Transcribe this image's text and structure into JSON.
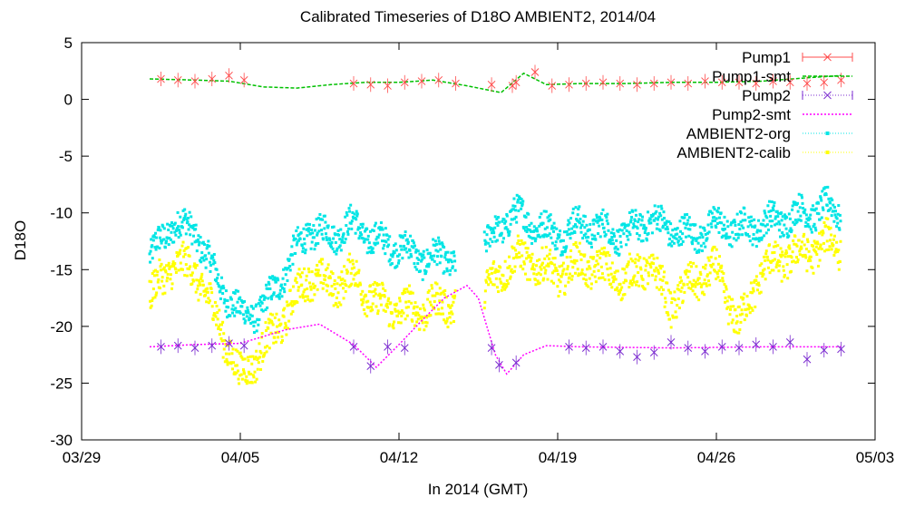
{
  "chart_data": {
    "type": "line",
    "title": "Calibrated Timeseries of D18O AMBIENT2, 2014/04",
    "xlabel": "In 2014 (GMT)",
    "ylabel": "D18O",
    "xlim": [
      "2014-03-29",
      "2014-05-03"
    ],
    "ylim": [
      -30,
      5
    ],
    "x_ticks": [
      "03/29",
      "04/05",
      "04/12",
      "04/19",
      "04/26",
      "05/03"
    ],
    "y_ticks": [
      "5",
      "0",
      "-5",
      "-10",
      "-15",
      "-20",
      "-25",
      "-30"
    ],
    "legend_position": "top-right",
    "series": [
      {
        "name": "Pump1",
        "color": "#ff4d4d",
        "marker": "cross-with-errorbars",
        "x": [
          "2014-04-01 12:00",
          "2014-04-02 06:00",
          "2014-04-03 00:00",
          "2014-04-03 18:00",
          "2014-04-04 12:00",
          "2014-04-05 04:00",
          "2014-04-10 00:00",
          "2014-04-10 18:00",
          "2014-04-11 12:00",
          "2014-04-12 06:00",
          "2014-04-13 00:00",
          "2014-04-13 18:00",
          "2014-04-14 12:00",
          "2014-04-16 02:00",
          "2014-04-17 00:00",
          "2014-04-17 04:00",
          "2014-04-18 00:00",
          "2014-04-18 18:00",
          "2014-04-19 12:00",
          "2014-04-20 06:00",
          "2014-04-21 00:00",
          "2014-04-21 18:00",
          "2014-04-22 12:00",
          "2014-04-23 06:00",
          "2014-04-24 00:00",
          "2014-04-24 18:00",
          "2014-04-25 12:00",
          "2014-04-26 06:00",
          "2014-04-27 00:00",
          "2014-04-27 18:00",
          "2014-04-28 12:00",
          "2014-04-29 06:00",
          "2014-04-30 00:00",
          "2014-04-30 18:00",
          "2014-05-01 12:00"
        ],
        "y": [
          1.8,
          1.7,
          1.6,
          1.8,
          2.1,
          1.7,
          1.4,
          1.3,
          1.2,
          1.5,
          1.6,
          1.7,
          1.4,
          1.3,
          1.2,
          1.5,
          2.4,
          1.2,
          1.3,
          1.4,
          1.5,
          1.4,
          1.3,
          1.4,
          1.5,
          1.4,
          1.6,
          1.5,
          1.5,
          1.4,
          1.6,
          1.5,
          1.4,
          1.5,
          1.7
        ]
      },
      {
        "name": "Pump1-smt",
        "color": "#00c000",
        "marker": "dashed-line",
        "x": [
          "2014-04-01 00:00",
          "2014-04-03 00:00",
          "2014-04-04 12:00",
          "2014-04-06 00:00",
          "2014-04-07 12:00",
          "2014-04-09 00:00",
          "2014-04-10 12:00",
          "2014-04-12 00:00",
          "2014-04-13 12:00",
          "2014-04-15 00:00",
          "2014-04-16 12:00",
          "2014-04-17 12:00",
          "2014-04-18 12:00",
          "2014-04-20 00:00",
          "2014-04-22 00:00",
          "2014-04-24 00:00",
          "2014-04-26 00:00",
          "2014-04-28 00:00",
          "2014-04-30 00:00",
          "2014-05-01 12:00"
        ],
        "y": [
          1.8,
          1.7,
          1.6,
          1.1,
          1.0,
          1.3,
          1.5,
          1.5,
          1.7,
          1.2,
          0.6,
          2.3,
          1.3,
          1.4,
          1.4,
          1.5,
          1.5,
          1.6,
          1.9,
          2.1
        ]
      },
      {
        "name": "Pump2",
        "color": "#7b2bd0",
        "marker": "cross-with-errorbars",
        "x": [
          "2014-04-01 12:00",
          "2014-04-02 06:00",
          "2014-04-03 00:00",
          "2014-04-03 18:00",
          "2014-04-04 12:00",
          "2014-04-05 04:00",
          "2014-04-10 00:00",
          "2014-04-10 18:00",
          "2014-04-11 12:00",
          "2014-04-12 06:00",
          "2014-04-16 02:00",
          "2014-04-16 10:00",
          "2014-04-17 04:00",
          "2014-04-19 12:00",
          "2014-04-20 06:00",
          "2014-04-21 00:00",
          "2014-04-21 18:00",
          "2014-04-22 12:00",
          "2014-04-23 06:00",
          "2014-04-24 00:00",
          "2014-04-24 18:00",
          "2014-04-25 12:00",
          "2014-04-26 06:00",
          "2014-04-27 00:00",
          "2014-04-27 18:00",
          "2014-04-28 12:00",
          "2014-04-29 06:00",
          "2014-04-30 00:00",
          "2014-04-30 18:00",
          "2014-05-01 12:00"
        ],
        "y": [
          -21.8,
          -21.7,
          -21.9,
          -21.7,
          -21.5,
          -21.7,
          -21.8,
          -23.5,
          -21.8,
          -21.9,
          -21.9,
          -23.4,
          -23.2,
          -21.8,
          -21.9,
          -21.8,
          -22.2,
          -22.7,
          -22.3,
          -21.4,
          -21.9,
          -22.2,
          -21.8,
          -21.9,
          -21.6,
          -21.8,
          -21.4,
          -22.9,
          -22.1,
          -22.0
        ]
      },
      {
        "name": "Pump2-smt",
        "color": "#ff00ff",
        "marker": "dotted-line",
        "x": [
          "2014-04-01 00:00",
          "2014-04-03 00:00",
          "2014-04-05 00:00",
          "2014-04-07 00:00",
          "2014-04-08 12:00",
          "2014-04-10 00:00",
          "2014-04-11 00:00",
          "2014-04-12 00:00",
          "2014-04-13 00:00",
          "2014-04-14 00:00",
          "2014-04-15 00:00",
          "2014-04-15 12:00",
          "2014-04-16 06:00",
          "2014-04-16 18:00",
          "2014-04-17 12:00",
          "2014-04-18 12:00",
          "2014-04-20 00:00",
          "2014-04-24 00:00",
          "2014-04-28 00:00",
          "2014-05-01 12:00"
        ],
        "y": [
          -21.8,
          -21.6,
          -21.5,
          -20.3,
          -19.8,
          -21.6,
          -23.6,
          -21.6,
          -19.5,
          -17.5,
          -16.4,
          -17.5,
          -22.5,
          -24.2,
          -22.5,
          -21.7,
          -21.8,
          -21.9,
          -21.8,
          -21.8
        ]
      },
      {
        "name": "AMBIENT2-org",
        "color": "#00e5e5",
        "marker": "dense-dots",
        "x": [
          "2014-04-01 00:00",
          "2014-04-02 00:00",
          "2014-04-03 00:00",
          "2014-04-04 00:00",
          "2014-04-05 00:00",
          "2014-04-06 00:00",
          "2014-04-07 00:00",
          "2014-04-08 00:00",
          "2014-04-09 00:00",
          "2014-04-10 00:00",
          "2014-04-11 00:00",
          "2014-04-12 00:00",
          "2014-04-13 00:00",
          "2014-04-14 00:00",
          "2014-04-15 00:00",
          "2014-04-16 00:00",
          "2014-04-17 00:00",
          "2014-04-18 00:00",
          "2014-04-19 00:00",
          "2014-04-20 00:00",
          "2014-04-21 00:00",
          "2014-04-22 00:00",
          "2014-04-23 00:00",
          "2014-04-24 00:00",
          "2014-04-25 00:00",
          "2014-04-26 00:00",
          "2014-04-27 00:00",
          "2014-04-28 00:00",
          "2014-04-29 00:00",
          "2014-04-30 00:00",
          "2014-05-01 00:00",
          "2014-05-01 12:00"
        ],
        "y": [
          -14.0,
          -11.0,
          -11.5,
          -16.0,
          -19.0,
          -18.5,
          -15.0,
          -11.5,
          -12.0,
          -11.0,
          -12.5,
          -13.0,
          -14.0,
          -14.0,
          -14.0,
          -12.5,
          -10.0,
          -11.0,
          -12.0,
          -11.0,
          -11.5,
          -12.0,
          -10.5,
          -11.5,
          -12.0,
          -11.0,
          -11.5,
          -11.0,
          -10.5,
          -10.0,
          -9.5,
          -10.0
        ]
      },
      {
        "name": "AMBIENT2-calib",
        "color": "#ffff00",
        "marker": "dense-dots",
        "x": [
          "2014-04-01 00:00",
          "2014-04-02 00:00",
          "2014-04-03 00:00",
          "2014-04-04 00:00",
          "2014-04-05 00:00",
          "2014-04-06 00:00",
          "2014-04-07 00:00",
          "2014-04-08 00:00",
          "2014-04-09 00:00",
          "2014-04-10 00:00",
          "2014-04-11 00:00",
          "2014-04-12 00:00",
          "2014-04-13 00:00",
          "2014-04-14 00:00",
          "2014-04-15 00:00",
          "2014-04-16 00:00",
          "2014-04-17 00:00",
          "2014-04-18 00:00",
          "2014-04-19 00:00",
          "2014-04-20 00:00",
          "2014-04-21 00:00",
          "2014-04-22 00:00",
          "2014-04-23 00:00",
          "2014-04-24 00:00",
          "2014-04-25 00:00",
          "2014-04-26 00:00",
          "2014-04-27 00:00",
          "2014-04-28 00:00",
          "2014-04-29 00:00",
          "2014-04-30 00:00",
          "2014-05-01 00:00",
          "2014-05-01 12:00"
        ],
        "y": [
          -17.5,
          -14.5,
          -15.0,
          -19.5,
          -24.5,
          -22.0,
          -19.0,
          -15.5,
          -16.5,
          -15.5,
          -18.0,
          -18.5,
          -18.5,
          -18.0,
          -18.0,
          -16.5,
          -14.0,
          -14.5,
          -15.5,
          -14.5,
          -15.0,
          -16.0,
          -14.5,
          -18.0,
          -16.0,
          -15.0,
          -20.0,
          -15.0,
          -14.0,
          -13.5,
          -12.5,
          -13.0
        ]
      }
    ]
  }
}
